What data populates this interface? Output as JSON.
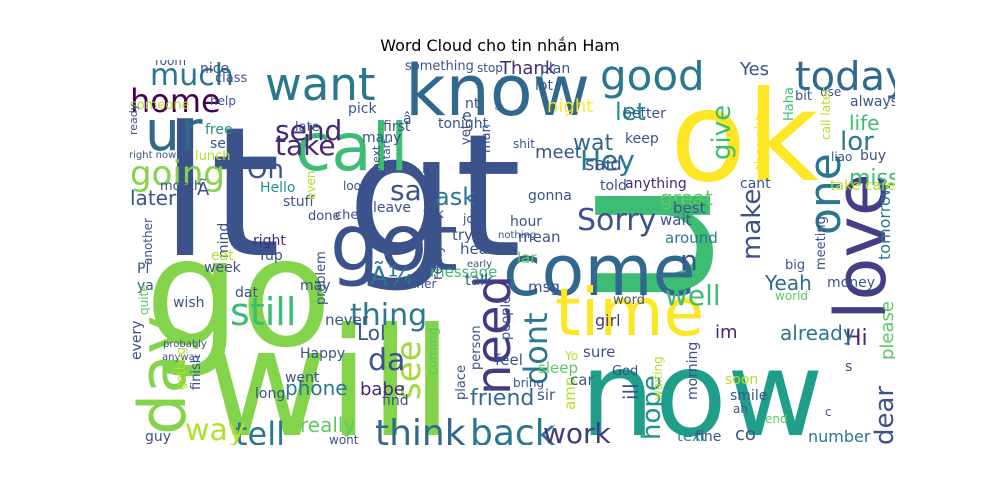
{
  "chart_data": {
    "type": "wordcloud",
    "title": "Word Cloud cho tin nhắn Ham",
    "words": [
      {
        "text": "lt",
        "color": "#3b528b"
      },
      {
        "text": "gt",
        "color": "#3b528b"
      },
      {
        "text": "u",
        "color": "#3dbc74"
      },
      {
        "text": "ok",
        "color": "#fde725"
      },
      {
        "text": "go",
        "color": "#84d44b"
      },
      {
        "text": "will",
        "color": "#84d44b"
      },
      {
        "text": "now",
        "color": "#1f9e89"
      },
      {
        "text": "know",
        "color": "#31688e"
      },
      {
        "text": "got",
        "color": "#3b528b"
      },
      {
        "text": "call",
        "color": "#3dbc74"
      },
      {
        "text": "come",
        "color": "#31688e"
      },
      {
        "text": "time",
        "color": "#fde725"
      },
      {
        "text": "love",
        "color": "#433e85"
      },
      {
        "text": "want",
        "color": "#2a788e"
      },
      {
        "text": "day",
        "color": "#84d44b"
      },
      {
        "text": "one",
        "color": "#2a788e"
      },
      {
        "text": "need",
        "color": "#443983"
      },
      {
        "text": "ur",
        "color": "#31688e"
      },
      {
        "text": "good",
        "color": "#2a788e"
      },
      {
        "text": "today",
        "color": "#31688e"
      },
      {
        "text": "still",
        "color": "#3dbc74"
      },
      {
        "text": "think",
        "color": "#31688e"
      },
      {
        "text": "back",
        "color": "#2a788e"
      },
      {
        "text": "going",
        "color": "#84d44b"
      },
      {
        "text": "Sorry",
        "color": "#3b528b"
      },
      {
        "text": "home",
        "color": "#440154"
      },
      {
        "text": "see",
        "color": "#a0da39"
      },
      {
        "text": "dont",
        "color": "#2a788e"
      },
      {
        "text": "tell",
        "color": "#2a788e"
      },
      {
        "text": "way",
        "color": "#b5de2b"
      },
      {
        "text": "work",
        "color": "#443983"
      },
      {
        "text": "much",
        "color": "#2a788e"
      },
      {
        "text": "send",
        "color": "#482878"
      },
      {
        "text": "take",
        "color": "#482878"
      },
      {
        "text": "Hey",
        "color": "#2a788e"
      },
      {
        "text": "say",
        "color": "#3b528b"
      },
      {
        "text": "thing",
        "color": "#2a788e"
      },
      {
        "text": "da",
        "color": "#3b528b"
      },
      {
        "text": "ask",
        "color": "#2a788e"
      },
      {
        "text": "well",
        "color": "#3dbc74"
      },
      {
        "text": "lor",
        "color": "#2a788e"
      },
      {
        "text": "make",
        "color": "#3b528b"
      },
      {
        "text": "give",
        "color": "#3dbc74"
      },
      {
        "text": "let",
        "color": "#21918c"
      },
      {
        "text": "dear",
        "color": "#3b528b"
      },
      {
        "text": "Oh",
        "color": "#3b528b"
      },
      {
        "text": "hope",
        "color": "#21918c"
      },
      {
        "text": "friend",
        "color": "#31688e"
      },
      {
        "text": "Lol",
        "color": "#3b528b"
      },
      {
        "text": "phone",
        "color": "#2a788e"
      },
      {
        "text": "Yeah",
        "color": "#31688e"
      },
      {
        "text": "n",
        "color": "#3b528b"
      },
      {
        "text": "Ã¼",
        "color": "#2a788e"
      },
      {
        "text": "Hi",
        "color": "#482878"
      },
      {
        "text": "please",
        "color": "#5ec962"
      },
      {
        "text": "already",
        "color": "#2a788e"
      },
      {
        "text": "im",
        "color": "#482878"
      },
      {
        "text": "really",
        "color": "#5ec962"
      },
      {
        "text": "babe",
        "color": "#482878"
      },
      {
        "text": "later",
        "color": "#3b528b"
      },
      {
        "text": "miss",
        "color": "#3dbc74"
      },
      {
        "text": "life",
        "color": "#3dbc74"
      },
      {
        "text": "night",
        "color": "#fde725"
      },
      {
        "text": "Thank",
        "color": "#482878"
      },
      {
        "text": "said",
        "color": "#3b528b"
      },
      {
        "text": "meet",
        "color": "#3b528b"
      },
      {
        "text": "wat",
        "color": "#31688e"
      },
      {
        "text": "tomorrow",
        "color": "#2a788e"
      },
      {
        "text": "number",
        "color": "#2a788e"
      },
      {
        "text": "text",
        "color": "#21918c"
      },
      {
        "text": "co",
        "color": "#3b528b"
      },
      {
        "text": "great",
        "color": "#5ec962"
      },
      {
        "text": "right",
        "color": "#482878"
      },
      {
        "text": "Yes",
        "color": "#3b528b"
      },
      {
        "text": "anything",
        "color": "#482878"
      },
      {
        "text": "msg",
        "color": "#3b528b"
      },
      {
        "text": "girl",
        "color": "#443983"
      },
      {
        "text": "sure",
        "color": "#3b528b"
      },
      {
        "text": "ill",
        "color": "#3b528b"
      },
      {
        "text": "amp",
        "color": "#b5de2b"
      },
      {
        "text": "sleep",
        "color": "#5ec962"
      },
      {
        "text": "car",
        "color": "#3b528b"
      },
      {
        "text": "sir",
        "color": "#3b528b"
      },
      {
        "text": "lar",
        "color": "#5ec962"
      },
      {
        "text": "heart",
        "color": "#3b528b"
      },
      {
        "text": "try",
        "color": "#3b528b"
      },
      {
        "text": "message",
        "color": "#3dbc74"
      },
      {
        "text": "talk",
        "color": "#3b528b"
      },
      {
        "text": "mean",
        "color": "#3b528b"
      },
      {
        "text": "wait",
        "color": "#3b528b"
      },
      {
        "text": "around",
        "color": "#2a788e"
      },
      {
        "text": "best",
        "color": "#3b528b"
      },
      {
        "text": "tonight",
        "color": "#3b528b"
      },
      {
        "text": "first",
        "color": "#3b528b"
      },
      {
        "text": "pick",
        "color": "#3b528b"
      },
      {
        "text": "late",
        "color": "#3b528b"
      },
      {
        "text": "free",
        "color": "#21918c"
      },
      {
        "text": "sent",
        "color": "#3b528b"
      },
      {
        "text": "lunch",
        "color": "#b5de2b"
      },
      {
        "text": "month",
        "color": "#3b528b"
      },
      {
        "text": "Hello",
        "color": "#21918c"
      },
      {
        "text": "stuff",
        "color": "#3b528b"
      },
      {
        "text": "done",
        "color": "#3b528b"
      },
      {
        "text": "check",
        "color": "#3b528b"
      },
      {
        "text": "leave",
        "color": "#3b528b"
      },
      {
        "text": "thk",
        "color": "#3b528b"
      },
      {
        "text": "job",
        "color": "#3b528b"
      },
      {
        "text": "hour",
        "color": "#3b528b"
      },
      {
        "text": "gonna",
        "color": "#3b528b"
      },
      {
        "text": "told",
        "color": "#3b528b"
      },
      {
        "text": "keep",
        "color": "#3b528b"
      },
      {
        "text": "better",
        "color": "#3b528b"
      },
      {
        "text": "cant",
        "color": "#3b528b"
      },
      {
        "text": "thought",
        "color": "#fde725"
      },
      {
        "text": "Haha",
        "color": "#3dbc74"
      },
      {
        "text": "bit",
        "color": "#3b528b"
      },
      {
        "text": "use",
        "color": "#3b528b"
      },
      {
        "text": "always",
        "color": "#3b528b"
      },
      {
        "text": "buy",
        "color": "#3b528b"
      },
      {
        "text": "liao",
        "color": "#3b528b"
      },
      {
        "text": "take care",
        "color": "#b5de2b"
      },
      {
        "text": "call later",
        "color": "#b5de2b"
      },
      {
        "text": "meeting",
        "color": "#3b528b"
      },
      {
        "text": "money",
        "color": "#3b528b"
      },
      {
        "text": "big",
        "color": "#3b528b"
      },
      {
        "text": "world",
        "color": "#5ec962"
      },
      {
        "text": "soon",
        "color": "#b5de2b"
      },
      {
        "text": "smile",
        "color": "#3b528b"
      },
      {
        "text": "ah",
        "color": "#3b528b"
      },
      {
        "text": "fine",
        "color": "#3b528b"
      },
      {
        "text": "end",
        "color": "#5ec962"
      },
      {
        "text": "c",
        "color": "#3b528b"
      },
      {
        "text": "s",
        "color": "#3b528b"
      },
      {
        "text": "morning",
        "color": "#3b528b"
      },
      {
        "text": "God",
        "color": "#3b528b"
      },
      {
        "text": "waiting",
        "color": "#b5de2b"
      },
      {
        "text": "word",
        "color": "#3b528b"
      },
      {
        "text": "Yo",
        "color": "#b5de2b"
      },
      {
        "text": "bring",
        "color": "#3b528b"
      },
      {
        "text": "find",
        "color": "#3b528b"
      },
      {
        "text": "coming",
        "color": "#5ec962"
      },
      {
        "text": "feel",
        "color": "#3b528b"
      },
      {
        "text": "place",
        "color": "#3b528b"
      },
      {
        "text": "person",
        "color": "#3b528b"
      },
      {
        "text": "people",
        "color": "#3b528b"
      },
      {
        "text": "dinner",
        "color": "#3b528b"
      },
      {
        "text": "early",
        "color": "#3b528b"
      },
      {
        "text": "nothing",
        "color": "#3b528b"
      },
      {
        "text": "never",
        "color": "#3b528b"
      },
      {
        "text": "reply",
        "color": "#3b528b"
      },
      {
        "text": "may",
        "color": "#3b528b"
      },
      {
        "text": "dat",
        "color": "#3b528b"
      },
      {
        "text": "Happy",
        "color": "#3b528b"
      },
      {
        "text": "went",
        "color": "#3b528b"
      },
      {
        "text": "long",
        "color": "#3b528b"
      },
      {
        "text": "wont",
        "color": "#3b528b"
      },
      {
        "text": "problem",
        "color": "#3b528b"
      },
      {
        "text": "mind",
        "color": "#3b528b"
      },
      {
        "text": "another",
        "color": "#3b528b"
      },
      {
        "text": "eat",
        "color": "#b5de2b"
      },
      {
        "text": "Yup",
        "color": "#3b528b"
      },
      {
        "text": "week",
        "color": "#3b528b"
      },
      {
        "text": "Pl",
        "color": "#3b528b"
      },
      {
        "text": "ya",
        "color": "#3b528b"
      },
      {
        "text": "wish",
        "color": "#3b528b"
      },
      {
        "text": "quite",
        "color": "#5ec962"
      },
      {
        "text": "every",
        "color": "#3b528b"
      },
      {
        "text": "probably",
        "color": "#3b528b"
      },
      {
        "text": "anyway",
        "color": "#3b528b"
      },
      {
        "text": "getting",
        "color": "#b5de2b"
      },
      {
        "text": "finish",
        "color": "#3b528b"
      },
      {
        "text": "guy",
        "color": "#3b528b"
      },
      {
        "text": "someone",
        "color": "#b5de2b"
      },
      {
        "text": "ready",
        "color": "#3b528b"
      },
      {
        "text": "right now",
        "color": "#3b528b"
      },
      {
        "text": "room",
        "color": "#3b528b"
      },
      {
        "text": "nice",
        "color": "#3b528b"
      },
      {
        "text": "class",
        "color": "#3b528b"
      },
      {
        "text": "help",
        "color": "#3b528b"
      },
      {
        "text": "something",
        "color": "#3b528b"
      },
      {
        "text": "stop",
        "color": "#3b528b"
      },
      {
        "text": "plan",
        "color": "#3b528b"
      },
      {
        "text": "lot",
        "color": "#3b528b"
      },
      {
        "text": "man",
        "color": "#3b528b"
      },
      {
        "text": "yet",
        "color": "#3b528b"
      },
      {
        "text": "shit",
        "color": "#3b528b"
      },
      {
        "text": "start",
        "color": "#3b528b"
      },
      {
        "text": "next",
        "color": "#3b528b"
      },
      {
        "text": "many",
        "color": "#3b528b"
      },
      {
        "text": "even",
        "color": "#b5de2b"
      },
      {
        "text": "look",
        "color": "#3b528b"
      },
      {
        "text": "b",
        "color": "#3b528b"
      },
      {
        "text": "e",
        "color": "#3b528b"
      },
      {
        "text": "Ã",
        "color": "#3b528b"
      },
      {
        "text": "â",
        "color": "#3b528b"
      },
      {
        "text": "nt",
        "color": "#3b528b"
      },
      {
        "text": "ok",
        "color": "#3b528b"
      }
    ]
  }
}
